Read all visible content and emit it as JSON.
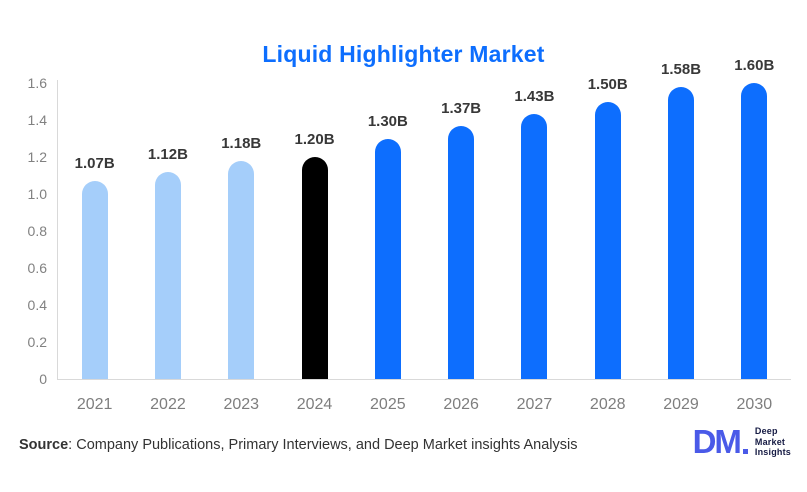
{
  "chart_data": {
    "type": "bar",
    "title": "Liquid Highlighter Market",
    "categories": [
      "2021",
      "2022",
      "2023",
      "2024",
      "2025",
      "2026",
      "2027",
      "2028",
      "2029",
      "2030"
    ],
    "values": [
      1.07,
      1.12,
      1.18,
      1.2,
      1.3,
      1.37,
      1.43,
      1.5,
      1.58,
      1.6
    ],
    "value_labels": [
      "1.07B",
      "1.12B",
      "1.18B",
      "1.20B",
      "1.30B",
      "1.37B",
      "1.43B",
      "1.50B",
      "1.58B",
      "1.60B"
    ],
    "bar_colors": [
      "#A5CEFA",
      "#A5CEFA",
      "#A5CEFA",
      "#000000",
      "#0D6EFE",
      "#0D6EFE",
      "#0D6EFE",
      "#0D6EFE",
      "#0D6EFE",
      "#0D6EFE"
    ],
    "xlabel": "",
    "ylabel": "",
    "ylim": [
      0,
      1.6
    ],
    "ytick_labels": [
      "0",
      "0.2",
      "0.4",
      "0.6",
      "0.8",
      "1.0",
      "1.2",
      "1.4",
      "1.6"
    ],
    "grid": false,
    "legend": false
  },
  "colors": {
    "title": "#0D6EFE",
    "bar_light_blue": "#A5CEFA",
    "bar_black": "#000000",
    "bar_blue": "#0D6EFE",
    "axis_line": "#D9D9D9",
    "tick_text": "#818181",
    "value_label_text": "#383838",
    "logo_mark": "#4A5AE8",
    "logo_text": "#151A43"
  },
  "footer": {
    "source_label": "Source",
    "source_rest": ": Company Publications, Primary Interviews, and Deep Market insights Analysis"
  },
  "logo": {
    "mark": "DM",
    "lines": [
      "Deep",
      "Market",
      "Insights"
    ]
  }
}
